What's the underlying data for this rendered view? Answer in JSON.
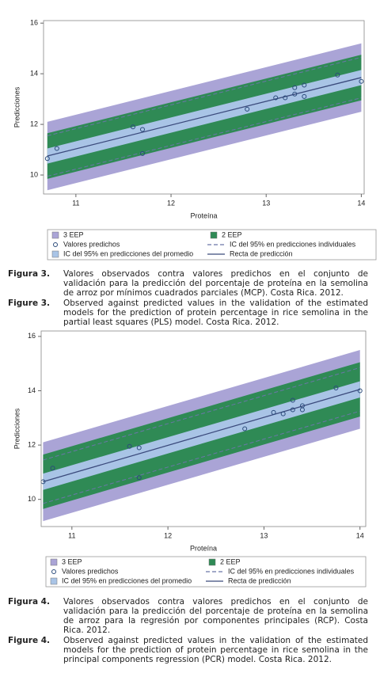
{
  "chart_data": [
    {
      "type": "scatter",
      "x_label": "Proteína",
      "y_label": "Predicciones",
      "xlim": [
        10.66,
        14.03
      ],
      "ylim": [
        9.25,
        16.1
      ],
      "xticks": [
        11,
        12,
        13,
        14
      ],
      "yticks": [
        10,
        12,
        14,
        16
      ],
      "series": [
        {
          "name": "3 EEP",
          "type": "band",
          "color": "#aaa4d6",
          "half_width": 1.35
        },
        {
          "name": "2 EEP",
          "type": "band",
          "color": "#2f8a55",
          "half_width": 0.9
        },
        {
          "name": "Valores predichos",
          "type": "points",
          "color": "#2a4a7a",
          "x": [
            10.7,
            10.8,
            11.6,
            11.7,
            11.7,
            12.8,
            13.1,
            13.2,
            13.3,
            13.3,
            13.4,
            13.4,
            13.75,
            14.0
          ],
          "values": [
            10.65,
            11.05,
            11.9,
            11.8,
            10.85,
            12.6,
            13.05,
            13.05,
            13.2,
            13.45,
            13.55,
            13.1,
            13.95,
            13.7
          ]
        },
        {
          "name": "IC del 95% en predicciones individuales",
          "type": "dashed",
          "color": "#6a76a8",
          "half_width": 0.8
        },
        {
          "name": "IC del 95% en predicciones del promedio",
          "type": "band",
          "color": "#a9c4e6",
          "half_width": 0.3
        },
        {
          "name": "Recta de predicción",
          "type": "line",
          "color": "#3b4a7c",
          "x": [
            10.7,
            14.0
          ],
          "values": [
            10.75,
            13.85
          ]
        }
      ]
    },
    {
      "type": "scatter",
      "x_label": "Proteína",
      "y_label": "Predicciones",
      "xlim": [
        10.68,
        14.06
      ],
      "ylim": [
        9.0,
        16.2
      ],
      "xticks": [
        11,
        12,
        13,
        14
      ],
      "yticks": [
        10,
        12,
        14,
        16
      ],
      "series": [
        {
          "name": "3 EEP",
          "type": "band",
          "color": "#aaa4d6",
          "half_width": 1.45
        },
        {
          "name": "2 EEP",
          "type": "band",
          "color": "#2f8a55",
          "half_width": 1.0
        },
        {
          "name": "Valores predichos",
          "type": "points",
          "color": "#2a4a7a",
          "x": [
            10.7,
            10.8,
            11.6,
            11.7,
            11.7,
            12.8,
            13.1,
            13.2,
            13.3,
            13.3,
            13.4,
            13.4,
            13.75,
            14.0
          ],
          "values": [
            10.65,
            11.15,
            11.95,
            11.9,
            10.8,
            12.6,
            13.2,
            13.15,
            13.3,
            13.65,
            13.3,
            13.45,
            14.1,
            14.0
          ]
        },
        {
          "name": "IC del 95% en predicciones individuales",
          "type": "dashed",
          "color": "#6a76a8",
          "half_width": 0.8
        },
        {
          "name": "IC del 95% en predicciones del promedio",
          "type": "band",
          "color": "#a9c4e6",
          "half_width": 0.3
        },
        {
          "name": "Recta de predicción",
          "type": "line",
          "color": "#3b4a7c",
          "x": [
            10.7,
            14.0
          ],
          "values": [
            10.65,
            14.05
          ]
        }
      ]
    }
  ],
  "captions": [
    {
      "label": "Figura 3.",
      "text": "Valores observados contra valores predichos en el conjunto de validación para la predicción del porcentaje de proteína en la semolina de arroz  por mínimos cuadrados parciales (MCP). Costa Rica. 2012."
    },
    {
      "label": "Figure 3.",
      "text": "Observed against predicted values in the validation of the estimated models for the prediction of protein percentage in rice semolina in the partial least squares (PLS) model. Costa Rica. 2012."
    },
    {
      "label": "Figura 4.",
      "text": "Valores observados contra valores predichos en el conjunto de validación para la predicción del porcentaje de proteína en la semolina de arroz para la regresión por componentes principales (RCP). Costa Rica. 2012."
    },
    {
      "label": "Figure 4.",
      "text": "Observed against predicted values in the validation of the estimated models for the prediction of protein percentage in rice semolina in the principal components regression (PCR) model. Costa Rica. 2012."
    }
  ]
}
